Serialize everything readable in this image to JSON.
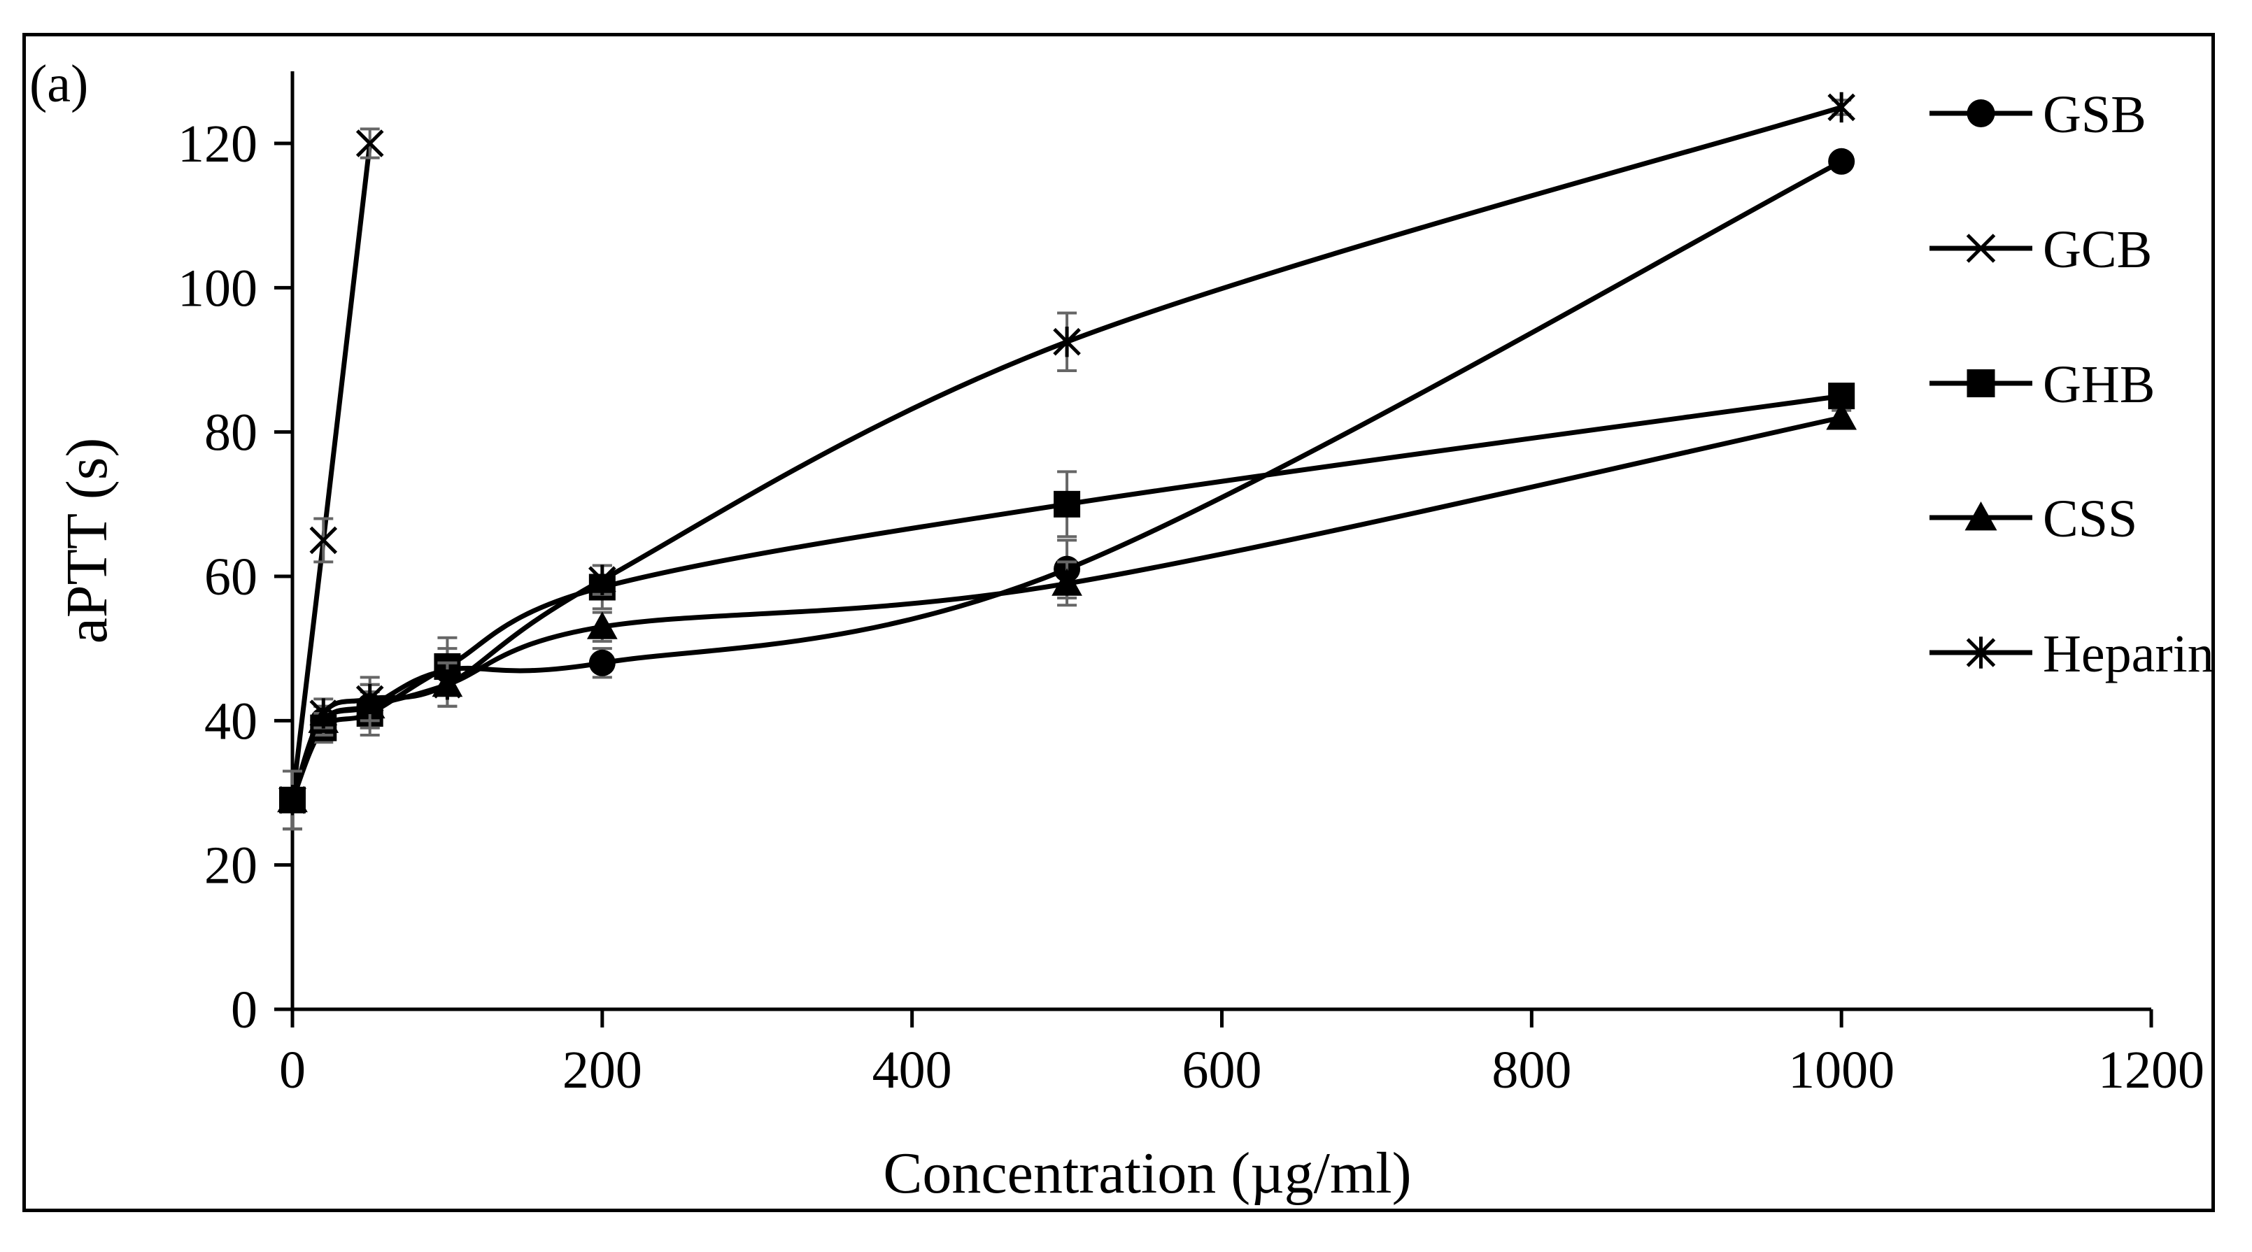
{
  "chart_data": {
    "type": "line",
    "panel_label": "(a)",
    "title": "",
    "xlabel": "Concentration (µg/ml)",
    "ylabel": "aPTT (s)",
    "xlim": [
      0,
      1200
    ],
    "ylim": [
      0,
      130
    ],
    "xticks": [
      0,
      200,
      400,
      600,
      800,
      1000,
      1200
    ],
    "yticks": [
      0,
      20,
      40,
      60,
      80,
      100,
      120
    ],
    "grid": false,
    "legend_position": "right",
    "line_color": "#000000",
    "errorbar_color": "#666666",
    "series": [
      {
        "name": "GSB",
        "marker": "circle",
        "x": [
          0,
          20,
          50,
          100,
          200,
          500,
          1000
        ],
        "y": [
          29,
          40,
          42,
          47,
          48,
          61,
          117.5
        ],
        "err": [
          4,
          2,
          3,
          3,
          2,
          4,
          1
        ]
      },
      {
        "name": "GCB",
        "marker": "x",
        "x": [
          0,
          20,
          50
        ],
        "y": [
          29,
          65,
          120
        ],
        "err": [
          4,
          3,
          2
        ]
      },
      {
        "name": "GHB",
        "marker": "square",
        "x": [
          0,
          20,
          50,
          100,
          200,
          500,
          1000
        ],
        "y": [
          29,
          39,
          41,
          47.5,
          58.5,
          70,
          85
        ],
        "err": [
          4,
          2,
          3,
          4,
          3,
          4.5,
          1
        ]
      },
      {
        "name": "CSS",
        "marker": "triangle",
        "x": [
          0,
          20,
          50,
          100,
          200,
          500,
          1000
        ],
        "y": [
          29,
          40,
          42,
          45,
          53,
          59,
          82
        ],
        "err": [
          4,
          2,
          3,
          3,
          2,
          3,
          1
        ]
      },
      {
        "name": "Heparin",
        "marker": "asterisk",
        "x": [
          0,
          20,
          50,
          100,
          200,
          500,
          1000
        ],
        "y": [
          29,
          41,
          43,
          45,
          59.5,
          92.5,
          125
        ],
        "err": [
          4,
          2,
          3,
          3,
          2,
          4,
          1
        ]
      }
    ]
  }
}
